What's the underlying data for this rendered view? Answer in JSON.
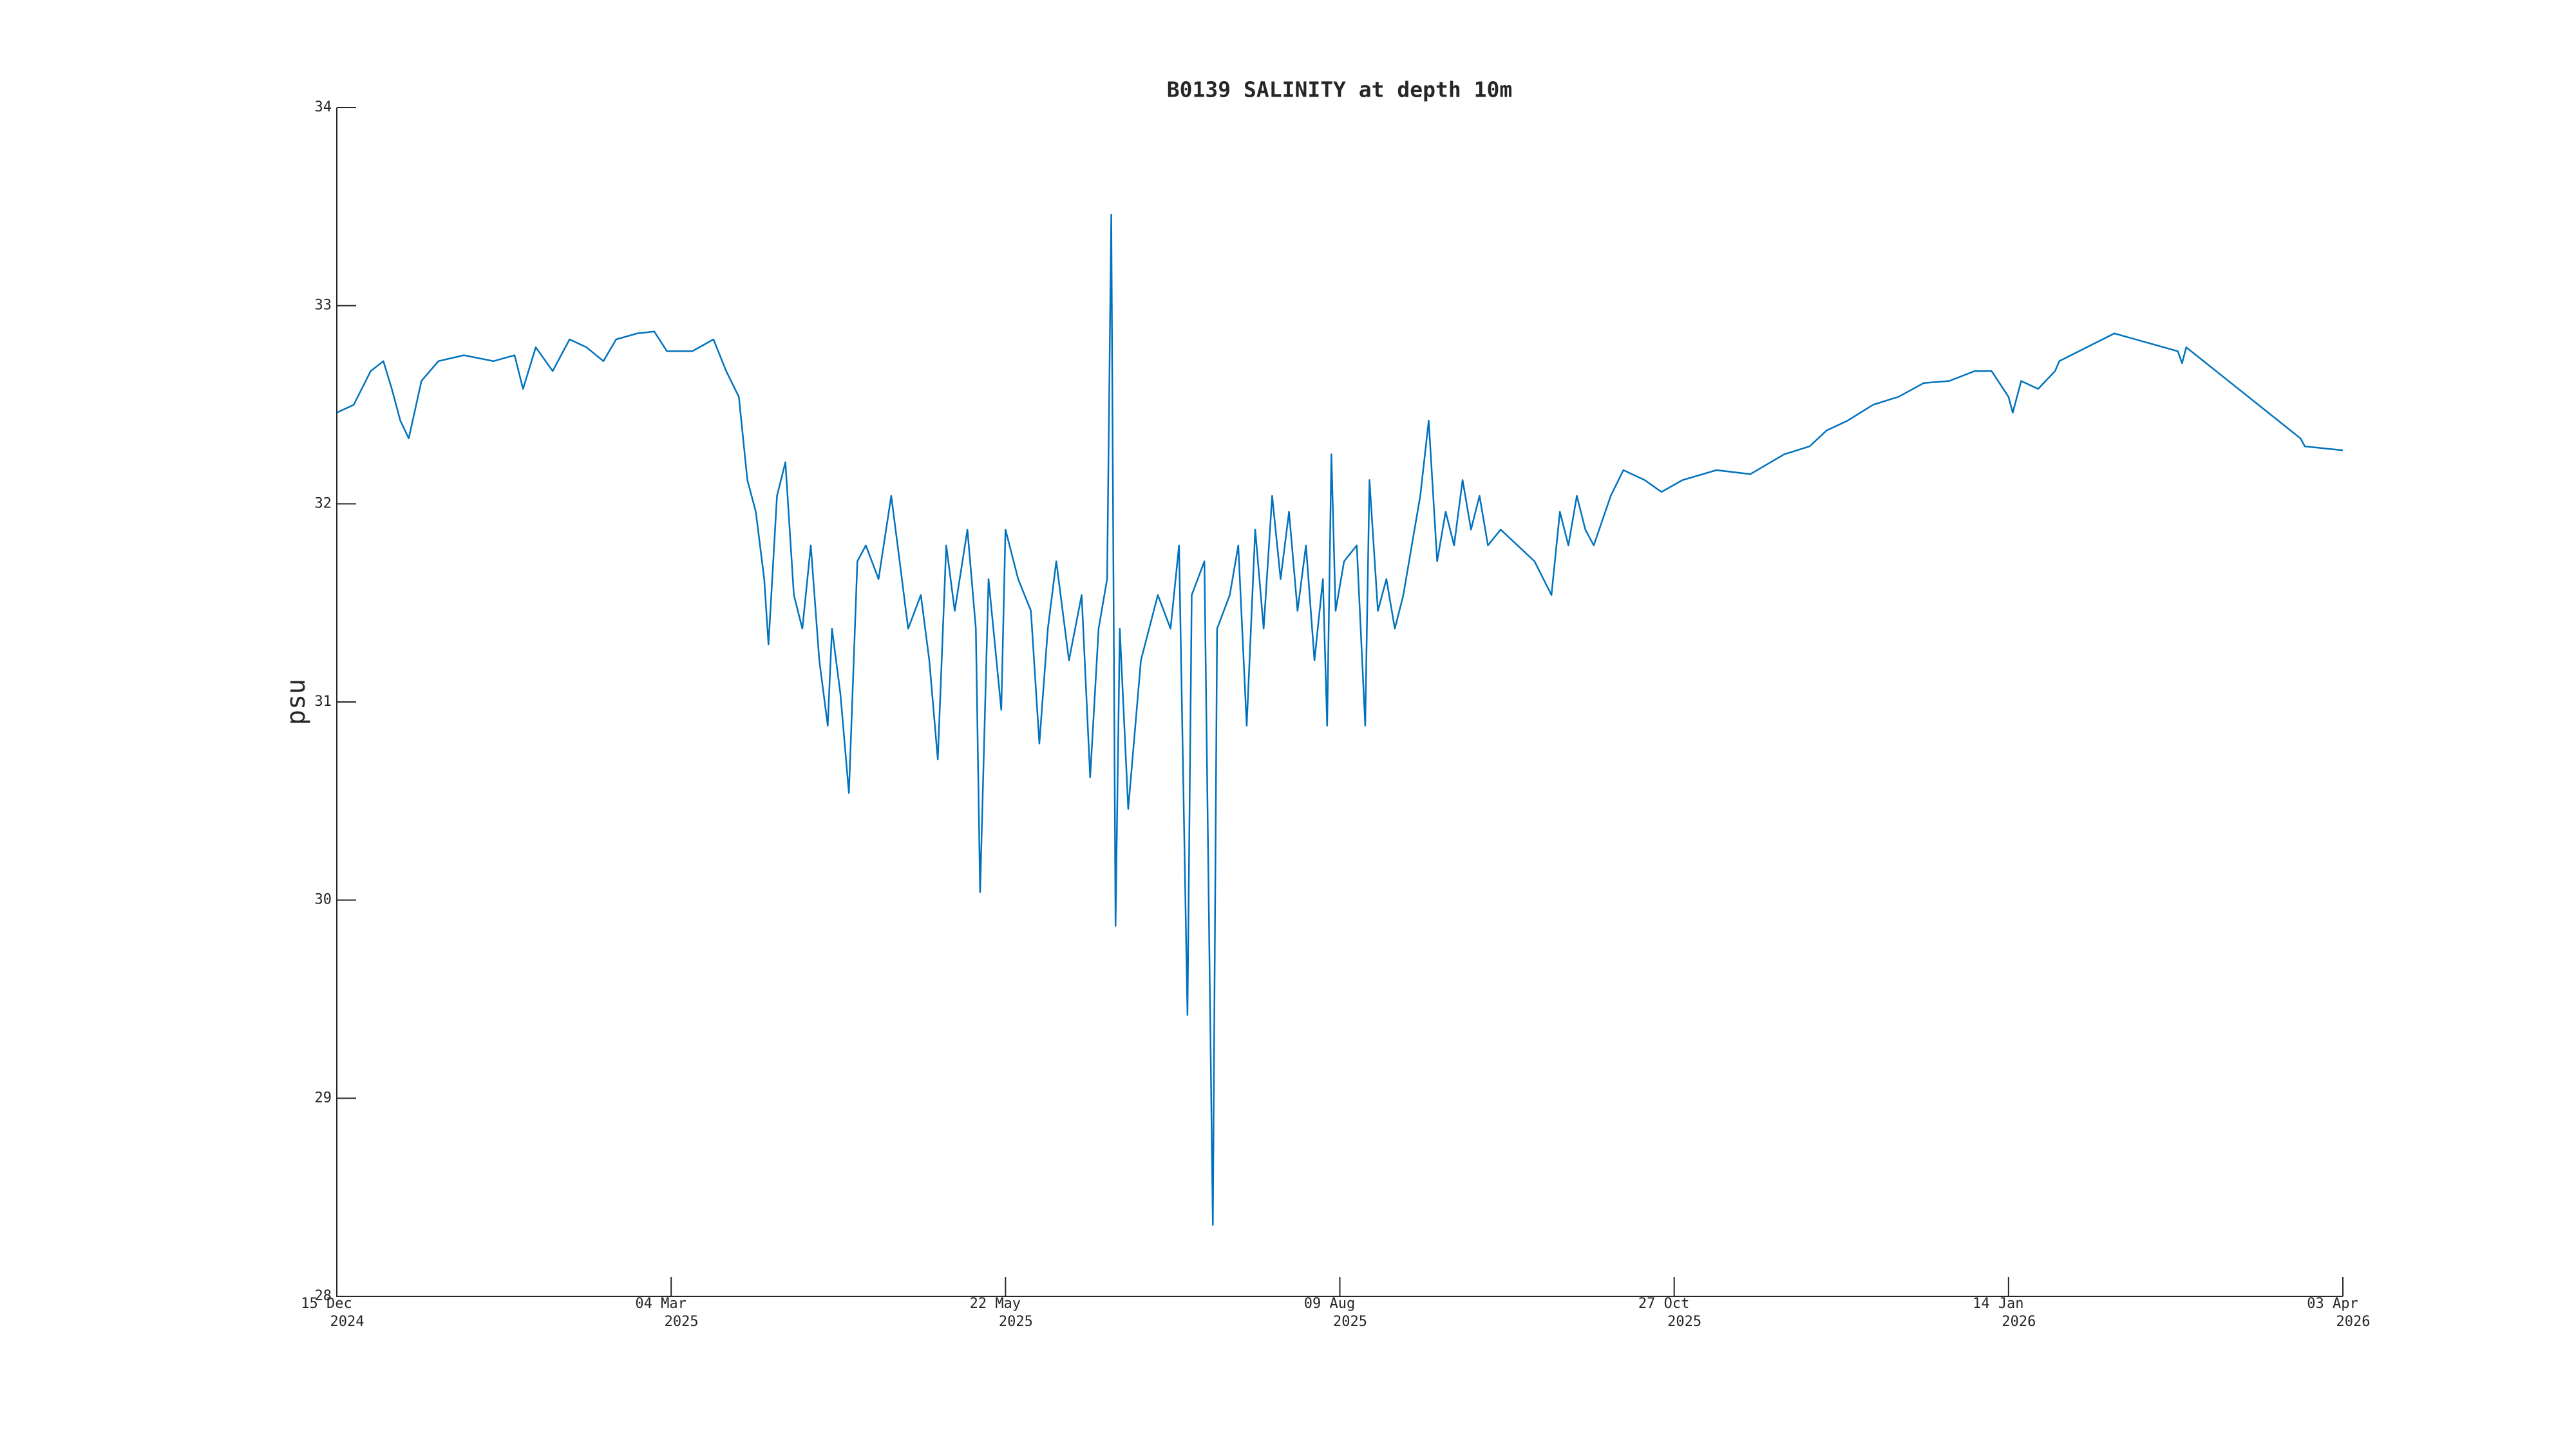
{
  "chart_data": {
    "type": "line",
    "title": "B0139 SALINITY at depth 10m",
    "ylabel": "psu",
    "color": "#0072bd",
    "x": [
      "2024-12-15",
      "2024-12-19",
      "2024-12-23",
      "2024-12-26",
      "2024-12-28",
      "2024-12-30",
      "2025-01-01",
      "2025-01-04",
      "2025-01-08",
      "2025-01-14",
      "2025-01-21",
      "2025-01-26",
      "2025-01-28",
      "2025-01-31",
      "2025-02-04",
      "2025-02-08",
      "2025-02-12",
      "2025-02-16",
      "2025-02-19",
      "2025-02-24",
      "2025-02-28",
      "2025-03-03",
      "2025-03-09",
      "2025-03-14",
      "2025-03-17",
      "2025-03-20",
      "2025-03-22",
      "2025-03-24",
      "2025-03-26",
      "2025-03-27",
      "2025-03-29",
      "2025-03-31",
      "2025-04-02",
      "2025-04-04",
      "2025-04-06",
      "2025-04-08",
      "2025-04-10",
      "2025-04-11",
      "2025-04-13",
      "2025-04-15",
      "2025-04-17",
      "2025-04-19",
      "2025-04-22",
      "2025-04-25",
      "2025-04-27",
      "2025-04-29",
      "2025-05-02",
      "2025-05-04",
      "2025-05-06",
      "2025-05-08",
      "2025-05-10",
      "2025-05-13",
      "2025-05-15",
      "2025-05-16",
      "2025-05-18",
      "2025-05-21",
      "2025-05-22",
      "2025-05-25",
      "2025-05-28",
      "2025-05-30",
      "2025-06-01",
      "2025-06-03",
      "2025-06-06",
      "2025-06-09",
      "2025-06-11",
      "2025-06-13",
      "2025-06-15",
      "2025-06-16",
      "2025-06-17",
      "2025-06-18",
      "2025-06-20",
      "2025-06-23",
      "2025-06-27",
      "2025-06-30",
      "2025-07-02",
      "2025-07-04",
      "2025-07-05",
      "2025-07-08",
      "2025-07-10",
      "2025-07-11",
      "2025-07-14",
      "2025-07-16",
      "2025-07-18",
      "2025-07-20",
      "2025-07-22",
      "2025-07-24",
      "2025-07-26",
      "2025-07-28",
      "2025-07-30",
      "2025-08-01",
      "2025-08-03",
      "2025-08-05",
      "2025-08-06",
      "2025-08-07",
      "2025-08-08",
      "2025-08-10",
      "2025-08-13",
      "2025-08-15",
      "2025-08-16",
      "2025-08-18",
      "2025-08-20",
      "2025-08-22",
      "2025-08-24",
      "2025-08-26",
      "2025-08-28",
      "2025-08-30",
      "2025-09-01",
      "2025-09-03",
      "2025-09-05",
      "2025-09-07",
      "2025-09-09",
      "2025-09-11",
      "2025-09-13",
      "2025-09-16",
      "2025-09-20",
      "2025-09-24",
      "2025-09-28",
      "2025-09-30",
      "2025-10-02",
      "2025-10-04",
      "2025-10-06",
      "2025-10-08",
      "2025-10-12",
      "2025-10-15",
      "2025-10-20",
      "2025-10-24",
      "2025-10-29",
      "2025-11-06",
      "2025-11-14",
      "2025-11-22",
      "2025-11-28",
      "2025-12-02",
      "2025-12-07",
      "2025-12-13",
      "2025-12-19",
      "2025-12-25",
      "2025-12-31",
      "2026-01-06",
      "2026-01-10",
      "2026-01-14",
      "2026-01-15",
      "2026-01-17",
      "2026-01-21",
      "2026-01-25",
      "2026-01-26",
      "2026-02-08",
      "2026-02-23",
      "2026-02-24",
      "2026-02-25",
      "2026-03-24",
      "2026-03-25",
      "2026-04-03"
    ],
    "values": [
      32.46,
      32.5,
      32.67,
      32.72,
      32.58,
      32.42,
      32.33,
      32.62,
      32.72,
      32.75,
      32.72,
      32.75,
      32.58,
      32.79,
      32.67,
      32.83,
      32.79,
      32.72,
      32.83,
      32.86,
      32.87,
      32.77,
      32.77,
      32.83,
      32.67,
      32.54,
      32.12,
      31.96,
      31.62,
      31.29,
      32.04,
      32.21,
      31.54,
      31.37,
      31.79,
      31.21,
      30.88,
      31.37,
      31.04,
      30.54,
      31.71,
      31.79,
      31.62,
      32.04,
      31.71,
      31.37,
      31.54,
      31.21,
      30.71,
      31.79,
      31.46,
      31.87,
      31.37,
      30.04,
      31.62,
      30.96,
      31.87,
      31.62,
      31.46,
      30.79,
      31.37,
      31.71,
      31.21,
      31.54,
      30.62,
      31.37,
      31.62,
      33.46,
      29.87,
      31.37,
      30.46,
      31.21,
      31.54,
      31.37,
      31.79,
      29.42,
      31.54,
      31.71,
      28.36,
      31.37,
      31.54,
      31.79,
      30.88,
      31.87,
      31.37,
      32.04,
      31.62,
      31.96,
      31.46,
      31.79,
      31.21,
      31.62,
      30.88,
      32.25,
      31.46,
      31.71,
      31.79,
      30.88,
      32.12,
      31.46,
      31.62,
      31.37,
      31.54,
      31.79,
      32.04,
      32.42,
      31.71,
      31.96,
      31.79,
      32.12,
      31.87,
      32.04,
      31.79,
      31.87,
      31.79,
      31.71,
      31.54,
      31.96,
      31.79,
      32.04,
      31.87,
      31.79,
      32.04,
      32.17,
      32.12,
      32.06,
      32.12,
      32.17,
      32.15,
      32.25,
      32.29,
      32.37,
      32.42,
      32.5,
      32.54,
      32.61,
      32.62,
      32.67,
      32.67,
      32.54,
      32.46,
      32.62,
      32.58,
      32.67,
      32.72,
      32.86,
      32.77,
      32.71,
      32.79,
      32.33,
      32.29,
      32.27
    ],
    "xlim": [
      "2024-12-15",
      "2026-04-03"
    ],
    "xticks": [
      {
        "value": "2024-12-15",
        "label": "15 Dec 2024"
      },
      {
        "value": "2025-03-04",
        "label": "04 Mar 2025"
      },
      {
        "value": "2025-05-22",
        "label": "22 May 2025"
      },
      {
        "value": "2025-08-09",
        "label": "09 Aug 2025"
      },
      {
        "value": "2025-10-27",
        "label": "27 Oct 2025"
      },
      {
        "value": "2026-01-14",
        "label": "14 Jan 2026"
      },
      {
        "value": "2026-04-03",
        "label": "03 Apr 2026"
      }
    ],
    "ylim": [
      28,
      34
    ],
    "yticks": [
      28,
      29,
      30,
      31,
      32,
      33,
      34
    ],
    "grid": false
  }
}
